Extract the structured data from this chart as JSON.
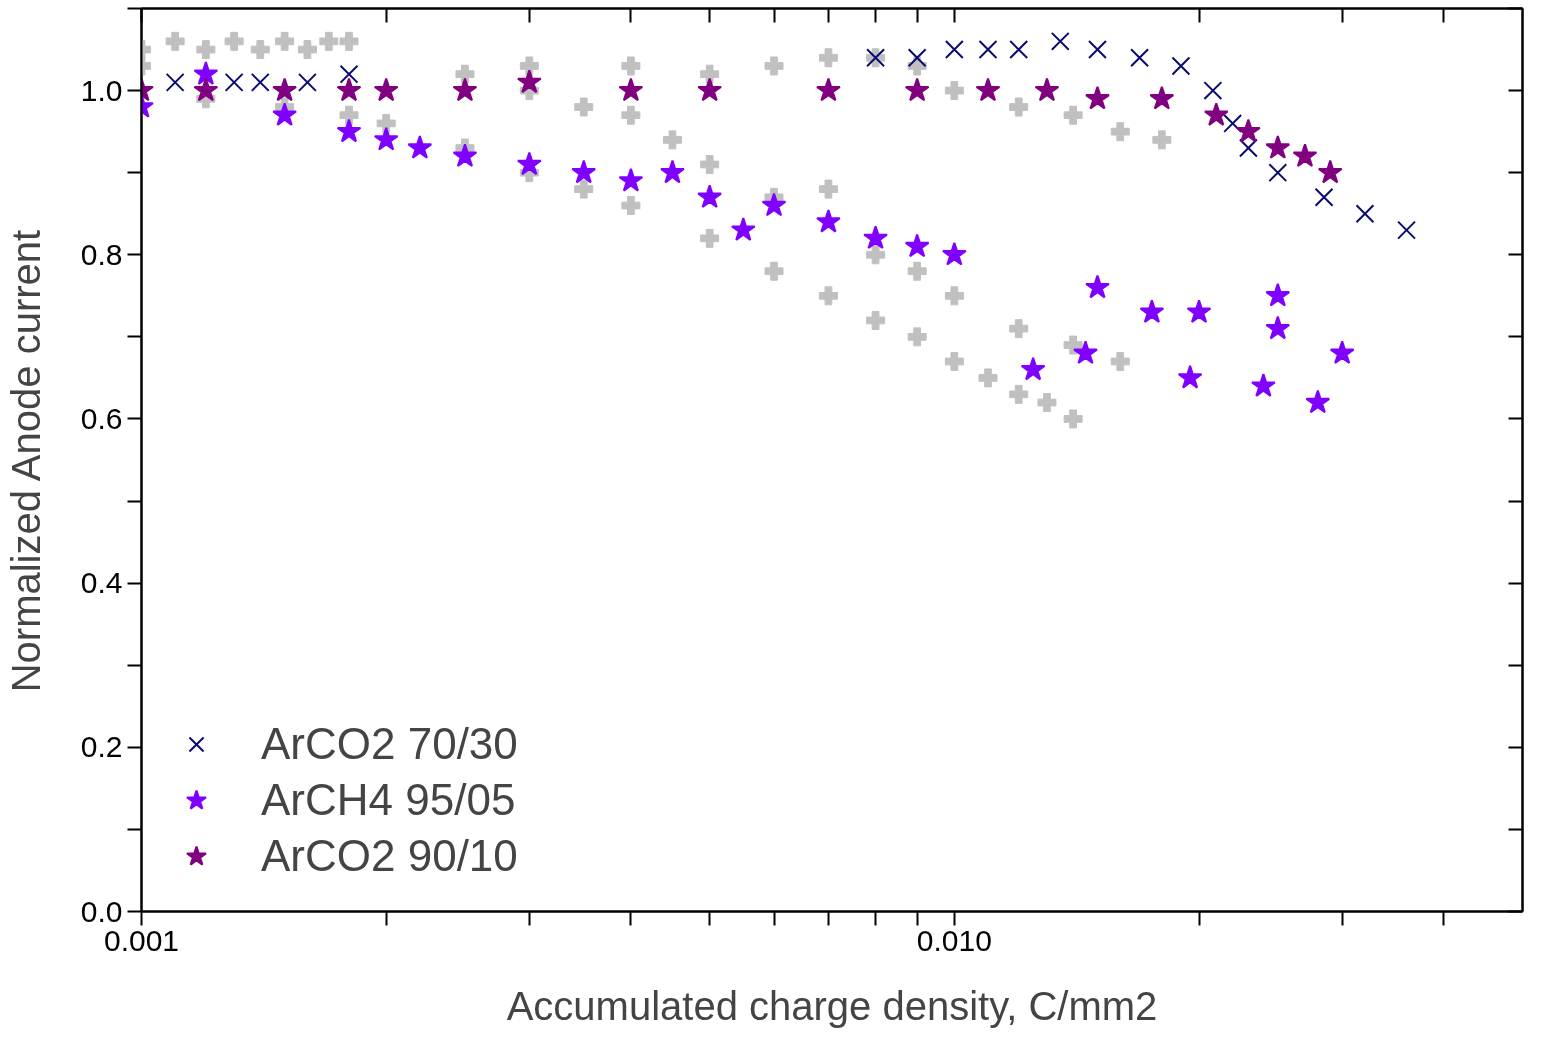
{
  "chart_data": {
    "type": "scatter",
    "xlabel": "Accumulated charge density, C/mm2",
    "ylabel": "Normalized Anode current",
    "log": "x",
    "grid": false,
    "legend": "bottom left",
    "xlim": [
      0.001,
      0.05
    ],
    "ylim": [
      0,
      1.1
    ],
    "xticks": [
      {
        "value": 0.001,
        "label": "0.001"
      },
      {
        "value": 0.002,
        "label": null
      },
      {
        "value": 0.003,
        "label": null
      },
      {
        "value": 0.004,
        "label": null
      },
      {
        "value": 0.005,
        "label": null
      },
      {
        "value": 0.006,
        "label": null
      },
      {
        "value": 0.007,
        "label": null
      },
      {
        "value": 0.008,
        "label": null
      },
      {
        "value": 0.009,
        "label": null
      },
      {
        "value": 0.01,
        "label": "0.010"
      },
      {
        "value": 0.02,
        "label": null
      },
      {
        "value": 0.03,
        "label": null
      },
      {
        "value": 0.04,
        "label": null
      }
    ],
    "yticks": [
      {
        "value": 0,
        "label": "0.0"
      },
      {
        "value": 0.1,
        "label": null
      },
      {
        "value": 0.2,
        "label": "0.2"
      },
      {
        "value": 0.3,
        "label": null
      },
      {
        "value": 0.4,
        "label": "0.4"
      },
      {
        "value": 0.5,
        "label": null
      },
      {
        "value": 0.6,
        "label": "0.6"
      },
      {
        "value": 0.7,
        "label": null
      },
      {
        "value": 0.8,
        "label": "0.8"
      },
      {
        "value": 0.9,
        "label": null
      },
      {
        "value": 1.0,
        "label": "1.0"
      },
      {
        "value": 1.1,
        "label": null
      }
    ],
    "series": [
      {
        "color": "#c0c0c0",
        "marker": "cross",
        "x": [
          0.001,
          0.0011,
          0.0012,
          0.0013,
          0.0014,
          0.0015,
          0.0016,
          0.0017,
          0.0018
        ],
        "values": [
          1.05,
          1.06,
          1.05,
          1.06,
          1.05,
          1.06,
          1.05,
          1.06,
          1.06
        ]
      },
      {
        "color": "#c0c0c0",
        "marker": "cross",
        "x": [
          0.001,
          0.0012,
          0.0015,
          0.0018,
          0.002,
          0.0025,
          0.003,
          0.0035,
          0.004,
          0.005,
          0.006,
          0.007,
          0.008,
          0.009,
          0.01,
          0.011,
          0.012,
          0.013,
          0.014
        ],
        "values": [
          1.03,
          0.99,
          0.98,
          0.97,
          0.96,
          0.93,
          0.9,
          0.88,
          0.86,
          0.82,
          0.78,
          0.75,
          0.72,
          0.7,
          0.67,
          0.65,
          0.63,
          0.62,
          0.6
        ]
      },
      {
        "color": "#c0c0c0",
        "marker": "cross",
        "x": [
          0.0025,
          0.003,
          0.0035,
          0.004,
          0.0045,
          0.005,
          0.006,
          0.007,
          0.008,
          0.009,
          0.01,
          0.012,
          0.014,
          0.016
        ],
        "values": [
          1.02,
          1.0,
          0.98,
          0.97,
          0.94,
          0.91,
          0.87,
          0.88,
          0.8,
          0.78,
          0.75,
          0.71,
          0.69,
          0.67
        ]
      },
      {
        "color": "#c0c0c0",
        "marker": "cross",
        "x": [
          0.003,
          0.004,
          0.005,
          0.006,
          0.007,
          0.008,
          0.009,
          0.01,
          0.012,
          0.014,
          0.016,
          0.018
        ],
        "values": [
          1.03,
          1.03,
          1.02,
          1.03,
          1.04,
          1.04,
          1.03,
          1.0,
          0.98,
          0.97,
          0.95,
          0.94
        ]
      },
      {
        "name": "ArCO2 70/30",
        "color": "#0b0b70",
        "marker": "x",
        "x": [
          0.0011,
          0.0013,
          0.0014,
          0.0016,
          0.0018,
          0.008,
          0.009,
          0.01,
          0.011,
          0.012,
          0.0135,
          0.015,
          0.0169,
          0.019,
          0.0208,
          0.022,
          0.023,
          0.025,
          0.0285,
          0.032,
          0.036
        ],
        "values": [
          1.01,
          1.01,
          1.01,
          1.01,
          1.02,
          1.04,
          1.04,
          1.05,
          1.05,
          1.05,
          1.06,
          1.05,
          1.04,
          1.03,
          1.0,
          0.96,
          0.93,
          0.9,
          0.87,
          0.85,
          0.83
        ]
      },
      {
        "name": "ArCH4 95/05",
        "color": "#8000ff",
        "marker": "star",
        "x": [
          0.001,
          0.0012,
          0.0015,
          0.0018,
          0.002,
          0.0022,
          0.0025,
          0.003,
          0.0035,
          0.004,
          0.0045,
          0.005,
          0.0055,
          0.006,
          0.007,
          0.008,
          0.009,
          0.01,
          0.0125,
          0.0145,
          0.015,
          0.0175,
          0.0195,
          0.02,
          0.024,
          0.025,
          0.025,
          0.028,
          0.03
        ],
        "values": [
          0.98,
          1.02,
          0.97,
          0.95,
          0.94,
          0.93,
          0.92,
          0.91,
          0.9,
          0.89,
          0.9,
          0.87,
          0.83,
          0.86,
          0.84,
          0.82,
          0.81,
          0.8,
          0.66,
          0.68,
          0.76,
          0.73,
          0.65,
          0.73,
          0.64,
          0.71,
          0.75,
          0.62,
          0.68
        ]
      },
      {
        "name": "ArCO2 90/10",
        "color": "#800080",
        "marker": "star",
        "x": [
          0.001,
          0.0012,
          0.0015,
          0.0018,
          0.002,
          0.0025,
          0.003,
          0.004,
          0.005,
          0.007,
          0.009,
          0.011,
          0.013,
          0.015,
          0.018,
          0.021,
          0.023,
          0.025,
          0.027,
          0.029
        ],
        "values": [
          1.0,
          1.0,
          1.0,
          1.0,
          1.0,
          1.0,
          1.01,
          1.0,
          1.0,
          1.0,
          1.0,
          1.0,
          1.0,
          0.99,
          0.99,
          0.97,
          0.95,
          0.93,
          0.92,
          0.9
        ]
      }
    ]
  }
}
